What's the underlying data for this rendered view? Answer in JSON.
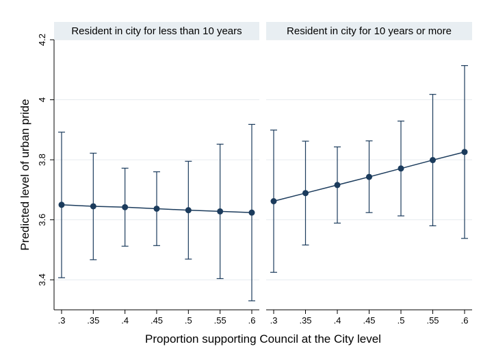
{
  "chart_data": {
    "type": "line",
    "xlabel": "Proportion supporting Council at the City level",
    "ylabel": "Predicted level of urban pride",
    "x": [
      0.3,
      0.35,
      0.4,
      0.45,
      0.5,
      0.55,
      0.6
    ],
    "x_tick_labels": [
      ".3",
      ".35",
      ".4",
      ".45",
      ".5",
      ".55",
      ".6"
    ],
    "ylim": [
      3.3,
      4.2
    ],
    "y_ticks": [
      3.4,
      3.6,
      3.8,
      4.0,
      4.2
    ],
    "y_tick_labels": [
      "3.4",
      "3.6",
      "3.8",
      "4",
      "4.2"
    ],
    "grid": true,
    "error_bars": true,
    "panels": [
      {
        "title": "Resident in city  for less than 10 years",
        "values": [
          3.65,
          3.645,
          3.642,
          3.637,
          3.632,
          3.628,
          3.624
        ],
        "lower": [
          3.407,
          3.467,
          3.512,
          3.514,
          3.469,
          3.404,
          3.33
        ],
        "upper": [
          3.892,
          3.822,
          3.772,
          3.76,
          3.795,
          3.852,
          3.918
        ]
      },
      {
        "title": "Resident in city for 10 years or more",
        "values": [
          3.662,
          3.689,
          3.716,
          3.743,
          3.771,
          3.799,
          3.826
        ],
        "lower": [
          3.425,
          3.516,
          3.589,
          3.624,
          3.613,
          3.58,
          3.538
        ],
        "upper": [
          3.899,
          3.862,
          3.843,
          3.863,
          3.929,
          4.018,
          4.114
        ]
      }
    ],
    "colors": {
      "series": "#1b3b5c",
      "panel_background": "#ffffff",
      "strip_background": "#e8eef2",
      "outer_background": "#ffffff",
      "gridline": "#e6ebef"
    }
  }
}
